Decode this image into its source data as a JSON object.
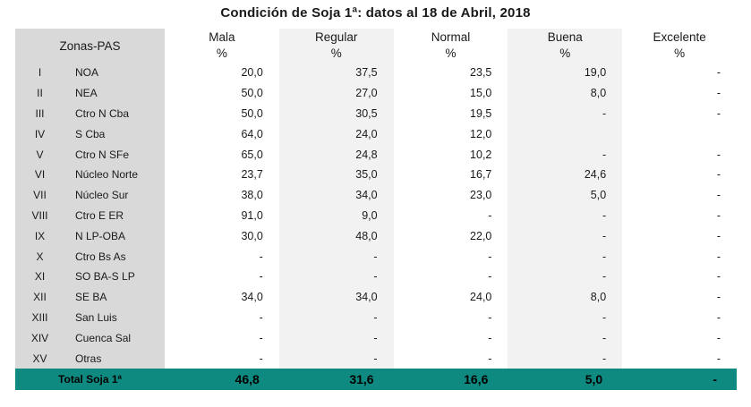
{
  "title": "Condición de Soja 1ª: datos al 18 de Abril, 2018",
  "headers": {
    "zone": "Zonas-PAS",
    "cols": [
      {
        "label": "Mala",
        "unit": "%"
      },
      {
        "label": "Regular",
        "unit": "%"
      },
      {
        "label": "Normal",
        "unit": "%"
      },
      {
        "label": "Buena",
        "unit": "%"
      },
      {
        "label": "Excelente",
        "unit": "%"
      }
    ]
  },
  "rows": [
    {
      "num": "I",
      "zone": "NOA",
      "values": [
        "20,0",
        "37,5",
        "23,5",
        "19,0",
        "-"
      ]
    },
    {
      "num": "II",
      "zone": "NEA",
      "values": [
        "50,0",
        "27,0",
        "15,0",
        "8,0",
        "-"
      ]
    },
    {
      "num": "III",
      "zone": "Ctro N Cba",
      "values": [
        "50,0",
        "30,5",
        "19,5",
        "-",
        "-"
      ]
    },
    {
      "num": "IV",
      "zone": "S Cba",
      "values": [
        "64,0",
        "24,0",
        "12,0",
        "",
        ""
      ]
    },
    {
      "num": "V",
      "zone": "Ctro N SFe",
      "values": [
        "65,0",
        "24,8",
        "10,2",
        "-",
        "-"
      ]
    },
    {
      "num": "VI",
      "zone": "Núcleo Norte",
      "values": [
        "23,7",
        "35,0",
        "16,7",
        "24,6",
        "-"
      ]
    },
    {
      "num": "VII",
      "zone": "Núcleo Sur",
      "values": [
        "38,0",
        "34,0",
        "23,0",
        "5,0",
        "-"
      ]
    },
    {
      "num": "VIII",
      "zone": "Ctro E ER",
      "values": [
        "91,0",
        "9,0",
        "-",
        "-",
        "-"
      ]
    },
    {
      "num": "IX",
      "zone": "N LP-OBA",
      "values": [
        "30,0",
        "48,0",
        "22,0",
        "-",
        "-"
      ]
    },
    {
      "num": "X",
      "zone": "Ctro Bs As",
      "values": [
        "-",
        "-",
        "-",
        "-",
        "-"
      ]
    },
    {
      "num": "XI",
      "zone": "SO BA-S LP",
      "values": [
        "-",
        "-",
        "-",
        "-",
        "-"
      ]
    },
    {
      "num": "XII",
      "zone": "SE BA",
      "values": [
        "34,0",
        "34,0",
        "24,0",
        "8,0",
        "-"
      ]
    },
    {
      "num": "XIII",
      "zone": "San Luis",
      "values": [
        "-",
        "-",
        "-",
        "-",
        "-"
      ]
    },
    {
      "num": "XIV",
      "zone": "Cuenca Sal",
      "values": [
        "-",
        "-",
        "-",
        "-",
        "-"
      ]
    },
    {
      "num": "XV",
      "zone": "Otras",
      "values": [
        "-",
        "-",
        "-",
        "-",
        "-"
      ]
    }
  ],
  "total": {
    "label": "Total Soja 1ª",
    "values": [
      "46,8",
      "31,6",
      "16,6",
      "5,0",
      "-"
    ]
  },
  "colors": {
    "teal": "#0f8a80",
    "zone_gray": "#d9d9d9",
    "col_shade": "#f2f2f2"
  }
}
